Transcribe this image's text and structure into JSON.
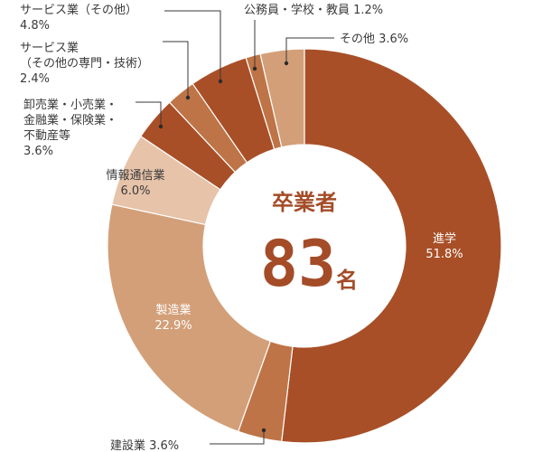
{
  "center": {
    "caption": "卒業者",
    "number": "83",
    "unit": "名"
  },
  "chart_data": {
    "type": "pie",
    "unit": "%",
    "slices": [
      {
        "name": "進学",
        "value": 51.8,
        "value_text": "51.8%",
        "color": "#a84f27",
        "label_lines": [
          "進学",
          "51.8%"
        ],
        "label_style": "inside",
        "text_color": "#ffffff"
      },
      {
        "name": "建設業",
        "value": 3.6,
        "value_text": "3.6%",
        "color": "#be7446",
        "label_lines": [
          "建設業 3.6%"
        ],
        "label_style": "callout",
        "text_color": "#3a3a3a"
      },
      {
        "name": "製造業",
        "value": 22.9,
        "value_text": "22.9%",
        "color": "#d39f78",
        "label_lines": [
          "製造業",
          "22.9%"
        ],
        "label_style": "inside",
        "text_color": "#ffffff"
      },
      {
        "name": "情報通信業",
        "value": 6.0,
        "value_text": "6.0%",
        "color": "#e6c3a9",
        "label_lines": [
          "情報通信業",
          "6.0%"
        ],
        "label_style": "inside",
        "text_color": "#3a3a3a"
      },
      {
        "name": "卸売業・小売業・金融業・保険業・不動産等",
        "value": 3.6,
        "value_text": "3.6%",
        "color": "#a84f27",
        "label_lines": [
          "卸売業・小売業・",
          "金融業・保険業・",
          "不動産等",
          "3.6%"
        ],
        "label_style": "callout",
        "text_color": "#3a3a3a"
      },
      {
        "name": "サービス業（その他の専門・技術）",
        "value": 2.4,
        "value_text": "2.4%",
        "color": "#be7446",
        "label_lines": [
          "サービス業",
          "（その他の専門・技術）",
          "2.4%"
        ],
        "label_style": "callout",
        "text_color": "#3a3a3a"
      },
      {
        "name": "サービス業（その他）",
        "value": 4.8,
        "value_text": "4.8%",
        "color": "#a84f27",
        "label_lines": [
          "サービス業（その他）",
          "4.8%"
        ],
        "label_style": "callout",
        "text_color": "#3a3a3a"
      },
      {
        "name": "公務員・学校・教員",
        "value": 1.2,
        "value_text": "1.2%",
        "color": "#be7446",
        "label_lines": [
          "公務員・学校・教員 1.2%"
        ],
        "label_style": "callout",
        "text_color": "#3a3a3a"
      },
      {
        "name": "その他",
        "value": 3.6,
        "value_text": "3.6%",
        "color": "#d39f78",
        "label_lines": [
          "その他 3.6%"
        ],
        "label_style": "callout",
        "text_color": "#3a3a3a"
      }
    ]
  }
}
